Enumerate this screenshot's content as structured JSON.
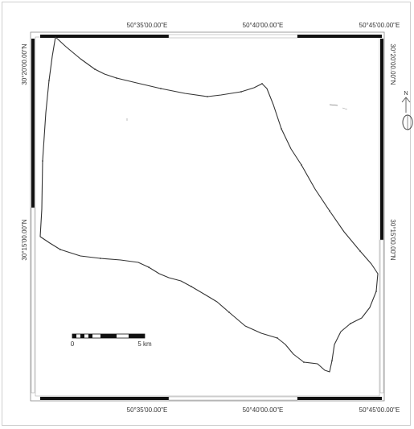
{
  "top_axis": {
    "labels": [
      "50°35'00.00\"E",
      "50°40'00.00\"E",
      "50°45'00.00\"E"
    ]
  },
  "bottom_axis": {
    "labels": [
      "50°35'00.00\"E",
      "50°40'00.00\"E",
      "50°45'00.00\"E"
    ]
  },
  "left_axis": {
    "labels": [
      "30°20'00.00\"N",
      "30°15'00.00\"N"
    ]
  },
  "right_axis": {
    "labels": [
      "30°20'00.00\"N",
      "30°15'00.00\"N"
    ]
  },
  "north_arrow": {
    "label": "N"
  },
  "scale_bar": {
    "start_label": "0",
    "end_label": "5 km"
  },
  "colors": {
    "frame_black": "#111111",
    "boundary": "#333333"
  }
}
